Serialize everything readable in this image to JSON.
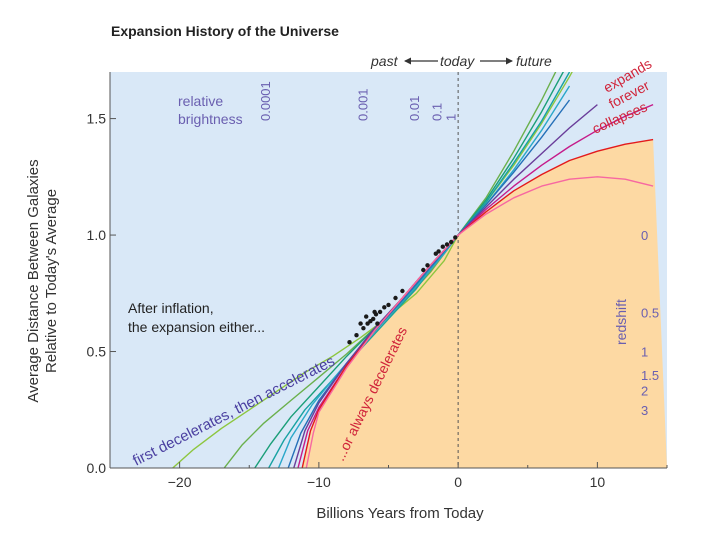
{
  "colors": {
    "past_region": "#d9e8f7",
    "future_region": "#fdd9a3",
    "annotation": "#6a5fb0",
    "red_label": "#d0243a",
    "axis_text": "#333333"
  },
  "chart_data": {
    "type": "line",
    "title": "Expansion History of the Universe",
    "xlabel": "Billions Years from Today",
    "ylabel": "Average Distance Between Galaxies Relative to Today's Average",
    "xlim": [
      -25,
      15
    ],
    "ylim": [
      0,
      1.7
    ],
    "x_ticks": [
      -20,
      -10,
      0,
      10
    ],
    "x_tick_labels": [
      "−20",
      "−10",
      "0",
      "10"
    ],
    "y_ticks": [
      0,
      0.5,
      1.0,
      1.5
    ],
    "y_tick_labels": [
      "0.0",
      "0.5",
      "1.0",
      "1.5"
    ],
    "today_line_x": 0,
    "time_arrow": {
      "past": "past",
      "today": "today",
      "future": "future"
    },
    "brightness": {
      "label_line1": "relative",
      "label_line2": "brightness",
      "ticks": [
        {
          "label": "0.0001",
          "x": -13.5
        },
        {
          "label": "0.001",
          "x": -6.5
        },
        {
          "label": "0.01",
          "x": -2.8
        },
        {
          "label": "0.1",
          "x": -1.2
        },
        {
          "label": "1",
          "x": -0.2
        }
      ]
    },
    "redshift": {
      "label": "redshift",
      "ticks": [
        {
          "label": "0",
          "y": 1.0
        },
        {
          "label": "0.5",
          "y": 0.667
        },
        {
          "label": "1",
          "y": 0.5
        },
        {
          "label": "1.5",
          "y": 0.4
        },
        {
          "label": "2",
          "y": 0.333
        },
        {
          "label": "3",
          "y": 0.25
        }
      ]
    },
    "annotations": {
      "after_inflation_line1": "After inflation,",
      "after_inflation_line2": "the expansion either...",
      "first_decelerates": "first decelerates, then accelerates",
      "or_always": "...or always decelerates",
      "expands": "expands",
      "forever": "forever",
      "collapses": "collapses"
    },
    "series": [
      {
        "name": "accelerating-a",
        "color": "#8dc63f",
        "x": [
          -20.5,
          -19,
          -17,
          -15,
          -13,
          -11,
          -9,
          -7,
          -5,
          -3,
          -1,
          0,
          2,
          4,
          6,
          8,
          10
        ],
        "values": [
          0.0,
          0.08,
          0.17,
          0.25,
          0.33,
          0.41,
          0.48,
          0.56,
          0.65,
          0.75,
          0.89,
          1.0,
          1.14,
          1.3,
          1.48,
          1.68,
          1.9
        ]
      },
      {
        "name": "accelerating-b",
        "color": "#6ab04c",
        "x": [
          -16.8,
          -15.5,
          -14,
          -12,
          -10,
          -8,
          -6,
          -4,
          -2,
          0,
          2,
          4,
          6,
          8
        ],
        "values": [
          0.0,
          0.1,
          0.19,
          0.29,
          0.39,
          0.49,
          0.6,
          0.71,
          0.84,
          1.0,
          1.16,
          1.36,
          1.58,
          1.82
        ]
      },
      {
        "name": "accelerating-c",
        "color": "#1a9e78",
        "x": [
          -14.6,
          -13.5,
          -12,
          -10,
          -8,
          -6,
          -4,
          -2,
          0,
          2,
          4,
          6,
          8
        ],
        "values": [
          0.0,
          0.1,
          0.22,
          0.35,
          0.48,
          0.6,
          0.72,
          0.85,
          1.0,
          1.15,
          1.33,
          1.53,
          1.75
        ]
      },
      {
        "name": "accelerating-d",
        "color": "#17a2a2",
        "x": [
          -13.6,
          -12.5,
          -11,
          -9,
          -7,
          -5,
          -3,
          -1,
          0,
          2,
          4,
          6,
          8
        ],
        "values": [
          0.0,
          0.12,
          0.25,
          0.38,
          0.51,
          0.64,
          0.77,
          0.93,
          1.0,
          1.14,
          1.31,
          1.49,
          1.7
        ]
      },
      {
        "name": "accelerating-e",
        "color": "#2aa7c9",
        "x": [
          -12.9,
          -12,
          -10.5,
          -9,
          -7,
          -5,
          -3,
          -1,
          0,
          2,
          4,
          6,
          8
        ],
        "values": [
          0.0,
          0.13,
          0.27,
          0.38,
          0.52,
          0.65,
          0.78,
          0.92,
          1.0,
          1.13,
          1.28,
          1.45,
          1.64
        ]
      },
      {
        "name": "accelerating-f",
        "color": "#2570b8",
        "x": [
          -12.2,
          -11.3,
          -10,
          -8,
          -6,
          -4,
          -2,
          0,
          2,
          4,
          6,
          8
        ],
        "values": [
          0.0,
          0.15,
          0.29,
          0.45,
          0.59,
          0.72,
          0.86,
          1.0,
          1.13,
          1.27,
          1.42,
          1.58
        ]
      },
      {
        "name": "critical-purple",
        "color": "#6a3d9a",
        "x": [
          -11.8,
          -11,
          -10,
          -8,
          -6,
          -4,
          -2,
          0,
          2,
          4,
          6,
          8,
          10
        ],
        "values": [
          0.0,
          0.16,
          0.28,
          0.45,
          0.6,
          0.73,
          0.87,
          1.0,
          1.12,
          1.24,
          1.35,
          1.46,
          1.56
        ]
      },
      {
        "name": "decelerating-magenta",
        "color": "#c51b8a",
        "x": [
          -11.5,
          -10.8,
          -10,
          -8,
          -6,
          -4,
          -2,
          0,
          2,
          4,
          6,
          8,
          10,
          12,
          14
        ],
        "values": [
          0.0,
          0.16,
          0.26,
          0.44,
          0.59,
          0.73,
          0.87,
          1.0,
          1.11,
          1.21,
          1.3,
          1.38,
          1.45,
          1.51,
          1.56
        ]
      },
      {
        "name": "decelerating-red",
        "color": "#e31a1c",
        "x": [
          -11.2,
          -10.6,
          -10,
          -8,
          -6,
          -4,
          -2,
          0,
          2,
          4,
          6,
          8,
          10,
          12,
          14
        ],
        "values": [
          0.0,
          0.16,
          0.25,
          0.44,
          0.59,
          0.73,
          0.87,
          1.0,
          1.1,
          1.19,
          1.26,
          1.32,
          1.36,
          1.39,
          1.41
        ]
      },
      {
        "name": "collapsing-pink",
        "color": "#f768a1",
        "x": [
          -10.9,
          -10.4,
          -10,
          -8,
          -6,
          -4,
          -2,
          0,
          2,
          4,
          6,
          8,
          10,
          12,
          14
        ],
        "values": [
          0.0,
          0.15,
          0.24,
          0.43,
          0.59,
          0.73,
          0.87,
          1.0,
          1.09,
          1.16,
          1.21,
          1.24,
          1.25,
          1.24,
          1.21
        ]
      }
    ],
    "points": [
      [
        -0.2,
        0.99
      ],
      [
        -0.5,
        0.97
      ],
      [
        -0.8,
        0.96
      ],
      [
        -1.1,
        0.95
      ],
      [
        -1.4,
        0.93
      ],
      [
        -1.6,
        0.92
      ],
      [
        -2.2,
        0.87
      ],
      [
        -2.5,
        0.85
      ],
      [
        -4.0,
        0.76
      ],
      [
        -4.5,
        0.73
      ],
      [
        -5.0,
        0.7
      ],
      [
        -5.3,
        0.69
      ],
      [
        -5.6,
        0.67
      ],
      [
        -5.9,
        0.66
      ],
      [
        -6.1,
        0.64
      ],
      [
        -6.3,
        0.63
      ],
      [
        -6.5,
        0.62
      ],
      [
        -6.8,
        0.6
      ],
      [
        -7.3,
        0.57
      ],
      [
        -7.8,
        0.54
      ],
      [
        -6.0,
        0.67
      ],
      [
        -5.8,
        0.62
      ],
      [
        -6.6,
        0.65
      ],
      [
        -7.0,
        0.62
      ]
    ]
  }
}
